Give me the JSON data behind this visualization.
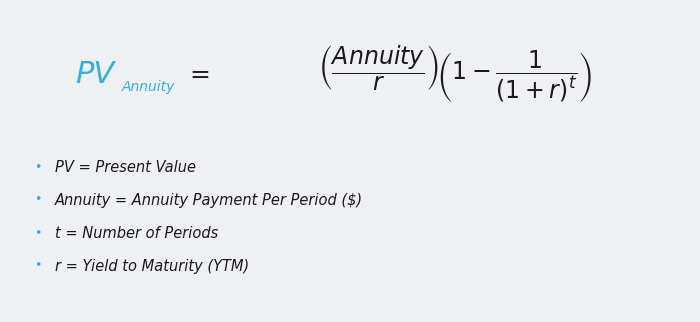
{
  "background_color": "#eef0f4",
  "formula_color": "#1a1a1a",
  "cyan_color": "#3ab0d8",
  "bullet_color": "#3ab0d8",
  "figsize": [
    7.0,
    3.22
  ],
  "dpi": 100,
  "pv_label": "PV",
  "pv_sub": "Annuity",
  "equals": "=",
  "bullets": [
    "PV = Present Value",
    "Annuity = Annuity Payment Per Period ($)",
    "t = Number of Periods",
    "r = Yield to Maturity (YTM)"
  ],
  "bullet_dot": "•"
}
